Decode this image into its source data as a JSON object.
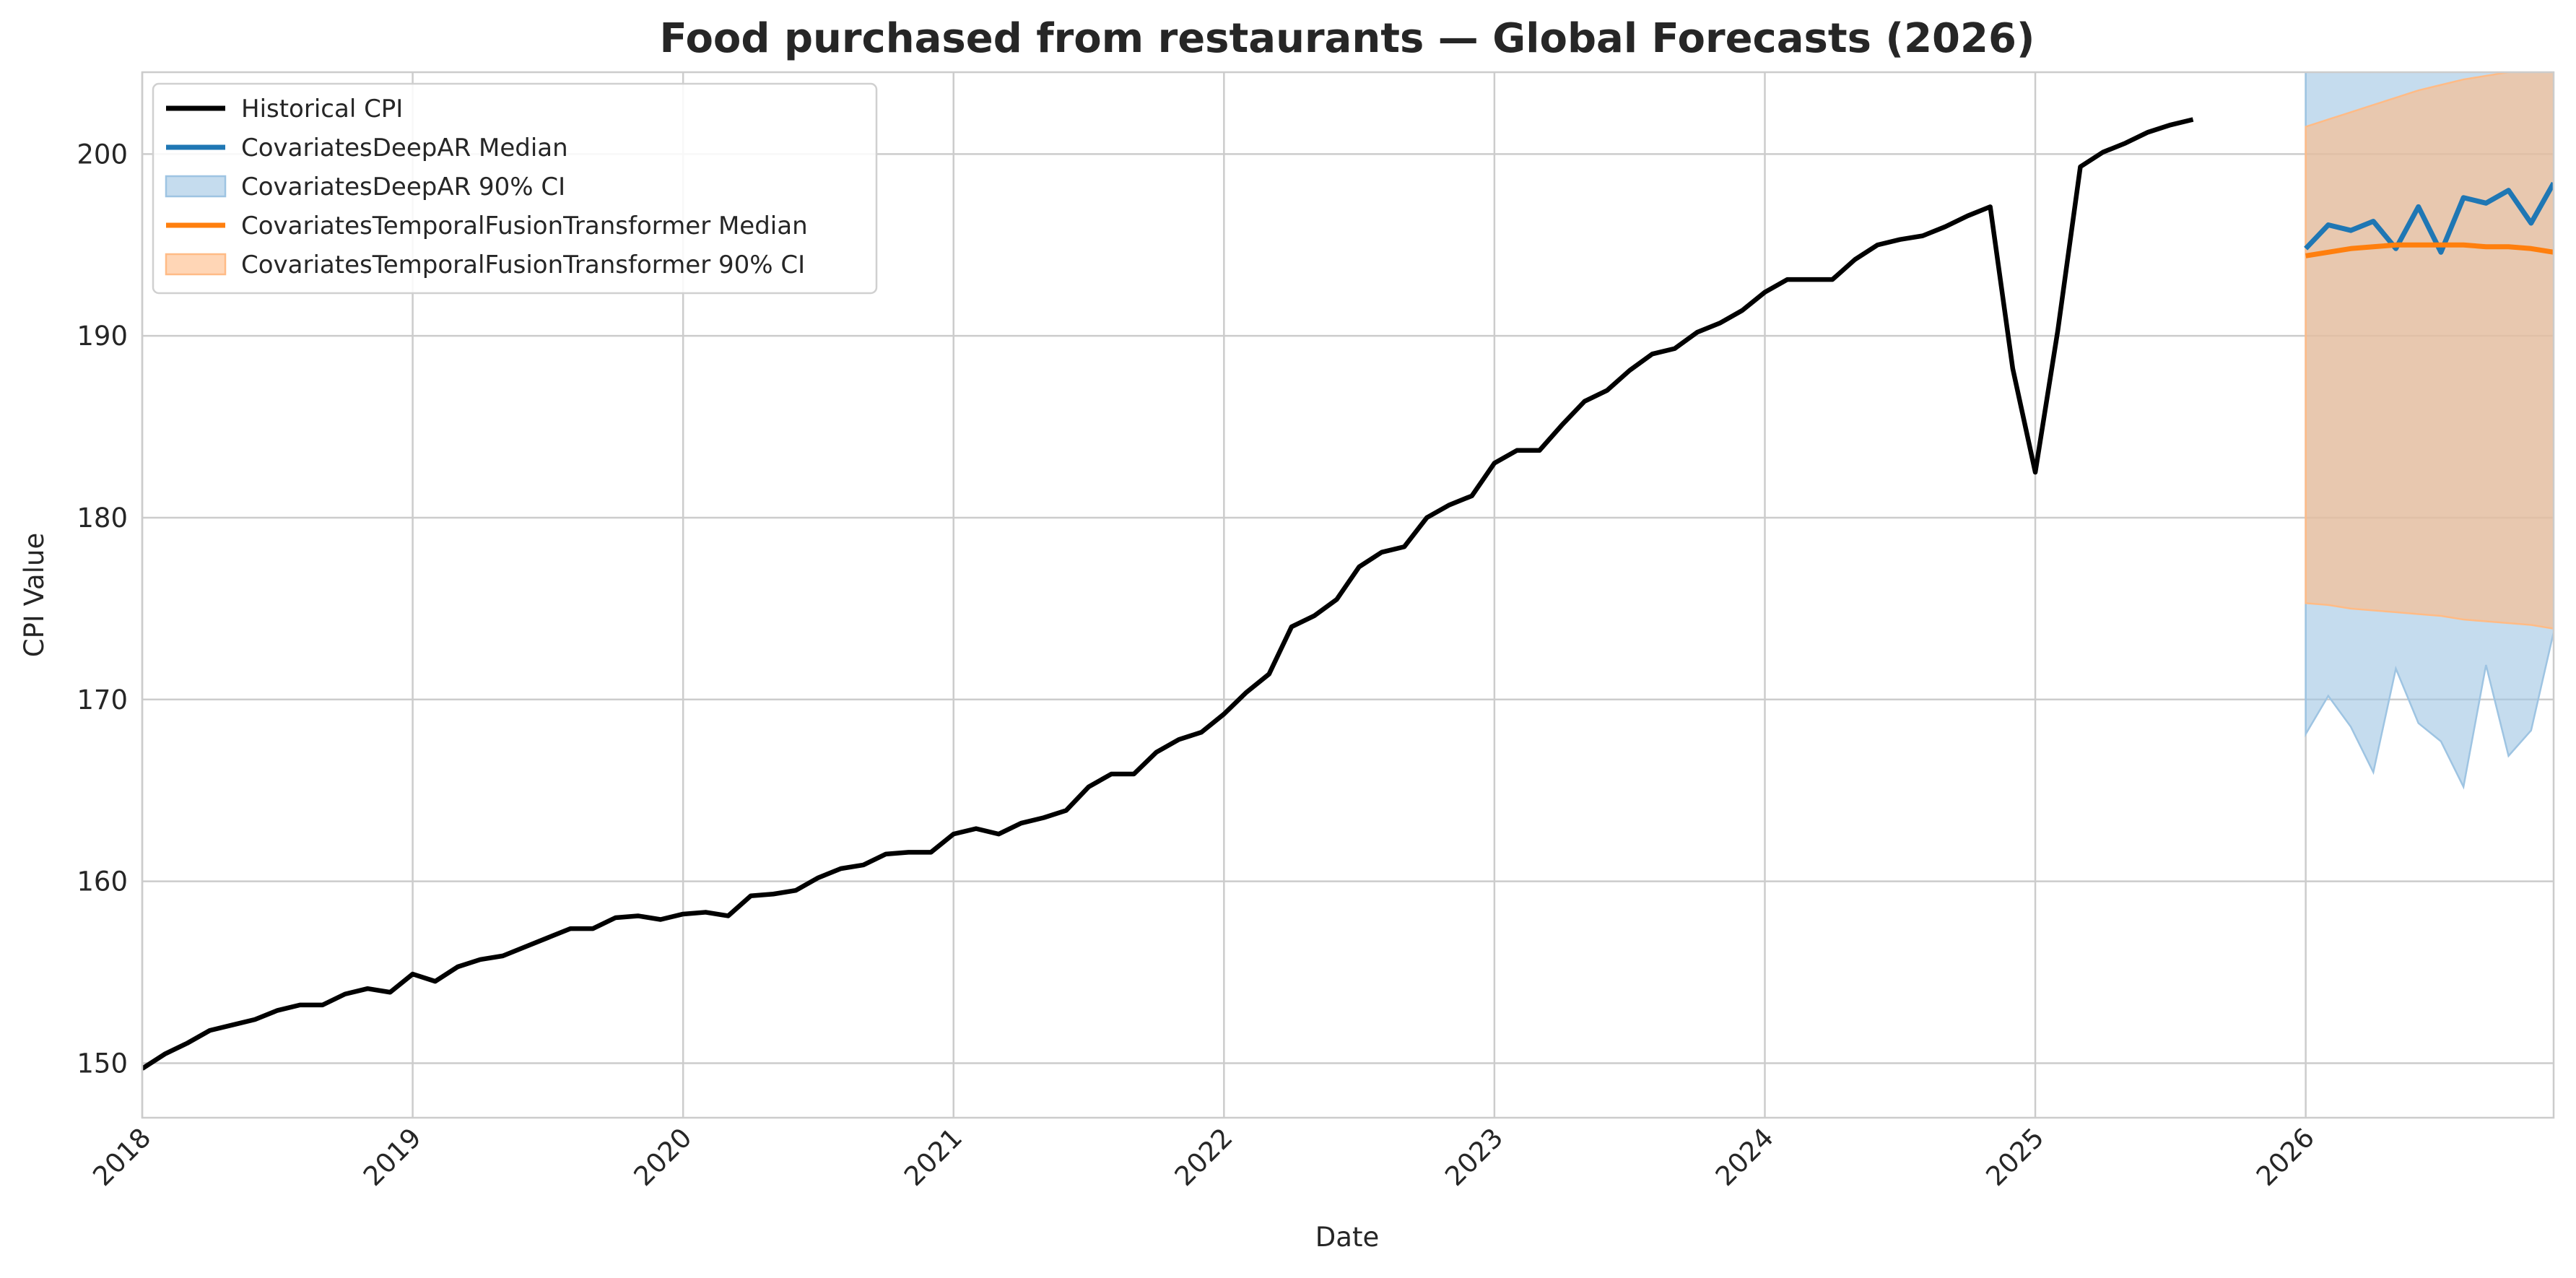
{
  "chart_data": {
    "type": "line",
    "title": "Food purchased from restaurants — Global Forecasts (2026)",
    "xlabel": "Date",
    "ylabel": "CPI Value",
    "xlim": [
      "2018-01",
      "2026-12"
    ],
    "ylim": [
      147,
      204.5
    ],
    "x_ticks": [
      "2018",
      "2019",
      "2020",
      "2021",
      "2022",
      "2023",
      "2024",
      "2025",
      "2026"
    ],
    "y_ticks": [
      150,
      160,
      170,
      180,
      190,
      200
    ],
    "grid": true,
    "legend_position": "top-left",
    "historical": {
      "name": "Historical CPI",
      "color": "#000000",
      "x": [
        "2018-01",
        "2018-02",
        "2018-03",
        "2018-04",
        "2018-05",
        "2018-06",
        "2018-07",
        "2018-08",
        "2018-09",
        "2018-10",
        "2018-11",
        "2018-12",
        "2019-01",
        "2019-02",
        "2019-03",
        "2019-04",
        "2019-05",
        "2019-06",
        "2019-07",
        "2019-08",
        "2019-09",
        "2019-10",
        "2019-11",
        "2019-12",
        "2020-01",
        "2020-02",
        "2020-03",
        "2020-04",
        "2020-05",
        "2020-06",
        "2020-07",
        "2020-08",
        "2020-09",
        "2020-10",
        "2020-11",
        "2020-12",
        "2021-01",
        "2021-02",
        "2021-03",
        "2021-04",
        "2021-05",
        "2021-06",
        "2021-07",
        "2021-08",
        "2021-09",
        "2021-10",
        "2021-11",
        "2021-12",
        "2022-01",
        "2022-02",
        "2022-03",
        "2022-04",
        "2022-05",
        "2022-06",
        "2022-07",
        "2022-08",
        "2022-09",
        "2022-10",
        "2022-11",
        "2022-12",
        "2023-01",
        "2023-02",
        "2023-03",
        "2023-04",
        "2023-05",
        "2023-06",
        "2023-07",
        "2023-08",
        "2023-09",
        "2023-10",
        "2023-11",
        "2023-12",
        "2024-01",
        "2024-02",
        "2024-03",
        "2024-04",
        "2024-05",
        "2024-06",
        "2024-07",
        "2024-08",
        "2024-09",
        "2024-10",
        "2024-11",
        "2024-12",
        "2025-01",
        "2025-02",
        "2025-03",
        "2025-04",
        "2025-05",
        "2025-06",
        "2025-07",
        "2025-08"
      ],
      "values": [
        149.7,
        150.5,
        151.1,
        151.8,
        152.1,
        152.4,
        152.9,
        153.2,
        153.2,
        153.8,
        154.1,
        153.9,
        154.9,
        154.5,
        155.3,
        155.7,
        155.9,
        156.4,
        156.9,
        157.4,
        157.4,
        158.0,
        158.1,
        157.9,
        158.2,
        158.3,
        158.1,
        159.2,
        159.3,
        159.5,
        160.2,
        160.7,
        160.9,
        161.5,
        161.6,
        161.6,
        162.6,
        162.9,
        162.6,
        163.2,
        163.5,
        163.9,
        165.2,
        165.9,
        165.9,
        167.1,
        167.8,
        168.2,
        169.2,
        170.4,
        171.4,
        174.0,
        174.6,
        175.5,
        177.3,
        178.1,
        178.4,
        180.0,
        180.7,
        181.2,
        183.0,
        183.7,
        183.7,
        185.1,
        186.4,
        187.0,
        188.1,
        189.0,
        189.3,
        190.2,
        190.7,
        191.4,
        192.4,
        193.1,
        193.1,
        193.1,
        194.2,
        195.0,
        195.3,
        195.5,
        196.0,
        196.6,
        197.1,
        188.2,
        182.5,
        190.3,
        199.3,
        200.1,
        200.6,
        201.2,
        201.6,
        201.9
      ]
    },
    "forecast_x": [
      "2026-01",
      "2026-02",
      "2026-03",
      "2026-04",
      "2026-05",
      "2026-06",
      "2026-07",
      "2026-08",
      "2026-09",
      "2026-10",
      "2026-11",
      "2026-12"
    ],
    "series": [
      {
        "name": "CovariatesDeepAR Median",
        "ci_name": "CovariatesDeepAR 90% CI",
        "color": "#1f77b4",
        "fill_color": "#9ec4e2",
        "median": [
          194.8,
          196.1,
          195.8,
          196.3,
          194.8,
          197.1,
          194.6,
          197.6,
          197.3,
          198.0,
          196.2,
          198.4
        ],
        "lower": [
          168.1,
          170.2,
          168.5,
          166.0,
          171.7,
          168.7,
          167.7,
          165.2,
          171.9,
          166.9,
          168.3,
          173.7
        ],
        "upper": [
          206.0,
          206.0,
          206.0,
          206.0,
          206.0,
          206.0,
          206.0,
          206.0,
          206.0,
          206.0,
          206.0,
          206.0
        ]
      },
      {
        "name": "CovariatesTemporalFusionTransformer Median",
        "ci_name": "CovariatesTemporalFusionTransformer 90% CI",
        "color": "#ff7f0e",
        "fill_color": "#ffbb86",
        "median": [
          194.4,
          194.6,
          194.8,
          194.9,
          195.0,
          195.0,
          195.0,
          195.0,
          194.9,
          194.9,
          194.8,
          194.6
        ],
        "lower": [
          175.3,
          175.2,
          175.0,
          174.9,
          174.8,
          174.7,
          174.6,
          174.4,
          174.3,
          174.2,
          174.1,
          173.9
        ],
        "upper": [
          201.5,
          201.9,
          202.3,
          202.7,
          203.1,
          203.5,
          203.8,
          204.1,
          204.3,
          204.5,
          204.6,
          204.7
        ]
      }
    ]
  }
}
